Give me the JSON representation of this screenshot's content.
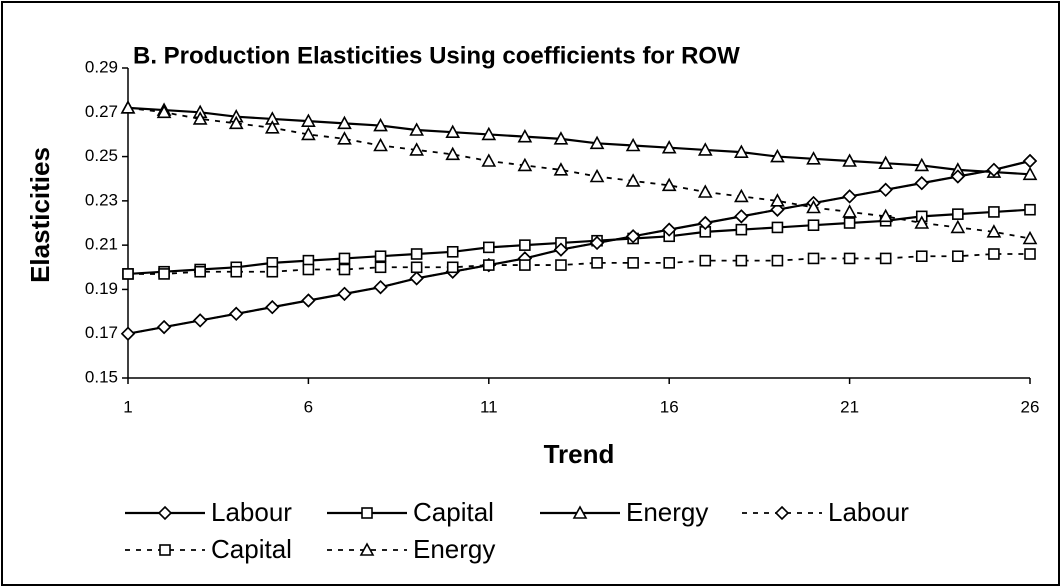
{
  "chart_data": {
    "type": "line",
    "title": "B. Production Elasticities Using coefficients for ROW",
    "x_label": "Trend",
    "y_label": "Elasticities",
    "x": [
      1,
      2,
      3,
      4,
      5,
      6,
      7,
      8,
      9,
      10,
      11,
      12,
      13,
      14,
      15,
      16,
      17,
      18,
      19,
      20,
      21,
      22,
      23,
      24,
      25,
      26
    ],
    "xlim": [
      1,
      26
    ],
    "xticks": [
      1,
      6,
      11,
      16,
      21,
      26
    ],
    "ylim": [
      0.15,
      0.29
    ],
    "yticks": [
      0.15,
      0.17,
      0.19,
      0.21,
      0.23,
      0.25,
      0.27,
      0.29
    ],
    "series": [
      {
        "name": "Labour",
        "color": "#000000",
        "marker": "diamond",
        "dashed": false,
        "values": [
          0.17,
          0.173,
          0.176,
          0.179,
          0.182,
          0.185,
          0.188,
          0.191,
          0.195,
          0.198,
          0.201,
          0.204,
          0.208,
          0.211,
          0.214,
          0.217,
          0.22,
          0.223,
          0.226,
          0.229,
          0.232,
          0.235,
          0.238,
          0.241,
          0.244,
          0.248
        ]
      },
      {
        "name": "Capital",
        "color": "#000000",
        "marker": "square",
        "dashed": false,
        "values": [
          0.197,
          0.198,
          0.199,
          0.2,
          0.202,
          0.203,
          0.204,
          0.205,
          0.206,
          0.207,
          0.209,
          0.21,
          0.211,
          0.212,
          0.213,
          0.214,
          0.216,
          0.217,
          0.218,
          0.219,
          0.22,
          0.221,
          0.223,
          0.224,
          0.225,
          0.226
        ]
      },
      {
        "name": "Energy",
        "color": "#000000",
        "marker": "triangle",
        "dashed": false,
        "values": [
          0.272,
          0.271,
          0.27,
          0.268,
          0.267,
          0.266,
          0.265,
          0.264,
          0.262,
          0.261,
          0.26,
          0.259,
          0.258,
          0.256,
          0.255,
          0.254,
          0.253,
          0.252,
          0.25,
          0.249,
          0.248,
          0.247,
          0.246,
          0.244,
          0.243,
          0.242
        ]
      },
      {
        "name": "Labour",
        "color": "#000000",
        "marker": "diamond",
        "dashed": true,
        "values": [
          0.17,
          0.173,
          0.176,
          0.179,
          0.182,
          0.185,
          0.188,
          0.191,
          0.195,
          0.198,
          0.201,
          0.204,
          0.208,
          0.211,
          0.214,
          0.217,
          0.22,
          0.223,
          0.226,
          0.229,
          0.232,
          0.235,
          0.238,
          0.241,
          0.244,
          0.248
        ]
      },
      {
        "name": "Capital",
        "color": "#000000",
        "marker": "square",
        "dashed": true,
        "values": [
          0.197,
          0.197,
          0.198,
          0.198,
          0.198,
          0.199,
          0.199,
          0.2,
          0.2,
          0.2,
          0.201,
          0.201,
          0.201,
          0.202,
          0.202,
          0.202,
          0.203,
          0.203,
          0.203,
          0.204,
          0.204,
          0.204,
          0.205,
          0.205,
          0.206,
          0.206
        ]
      },
      {
        "name": "Energy",
        "color": "#000000",
        "marker": "triangle",
        "dashed": true,
        "values": [
          0.272,
          0.27,
          0.267,
          0.265,
          0.263,
          0.26,
          0.258,
          0.255,
          0.253,
          0.251,
          0.248,
          0.246,
          0.244,
          0.241,
          0.239,
          0.237,
          0.234,
          0.232,
          0.23,
          0.227,
          0.225,
          0.223,
          0.22,
          0.218,
          0.216,
          0.213
        ]
      }
    ]
  }
}
